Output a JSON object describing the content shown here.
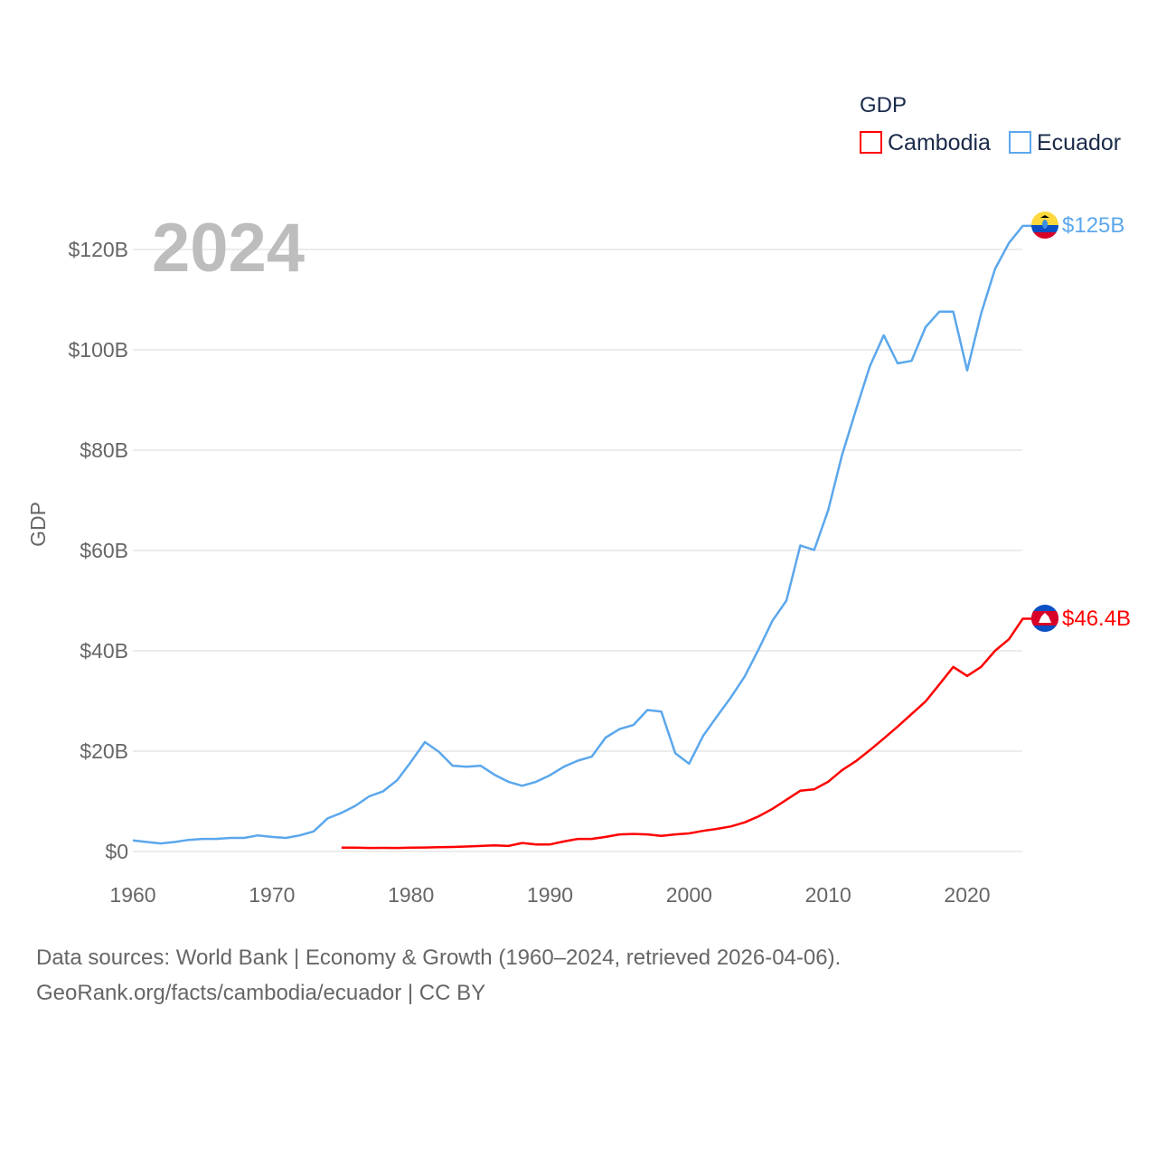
{
  "chart_data": {
    "type": "line",
    "year_label": "2024",
    "ylabel": "GDP",
    "legend_title": "GDP",
    "legend_placement": "top-right",
    "xlim": [
      1960,
      2024
    ],
    "ylim": [
      0,
      125
    ],
    "x_ticks": [
      1960,
      1970,
      1980,
      1990,
      2000,
      2010,
      2020
    ],
    "x_tick_labels": [
      "1960",
      "1970",
      "1980",
      "1990",
      "2000",
      "2010",
      "2020"
    ],
    "y_ticks": [
      0,
      20,
      40,
      60,
      80,
      100,
      120
    ],
    "y_tick_labels": [
      "$0",
      "$20B",
      "$40B",
      "$60B",
      "$80B",
      "$100B",
      "$120B"
    ],
    "grid": true,
    "series": [
      {
        "name": "Cambodia",
        "color": "#ff0000",
        "end_label": "$46.4B",
        "start_year": 1975,
        "values": [
          0.75,
          0.75,
          0.7,
          0.72,
          0.7,
          0.75,
          0.8,
          0.85,
          0.9,
          1.0,
          1.1,
          1.2,
          1.1,
          1.7,
          1.4,
          1.4,
          2.0,
          2.5,
          2.5,
          2.9,
          3.4,
          3.5,
          3.4,
          3.1,
          3.4,
          3.6,
          4.1,
          4.5,
          5.0,
          5.8,
          7.0,
          8.5,
          10.3,
          12.1,
          12.4,
          13.9,
          16.2,
          18.0,
          20.2,
          22.5,
          24.9,
          27.4,
          29.9,
          33.3,
          36.8,
          35.0,
          36.8,
          40.0,
          42.3,
          46.4
        ]
      },
      {
        "name": "Ecuador",
        "color": "#5ba7ec",
        "end_label": "$125B",
        "start_year": 1960,
        "values": [
          2.2,
          1.9,
          1.6,
          1.9,
          2.3,
          2.5,
          2.5,
          2.7,
          2.7,
          3.2,
          2.9,
          2.7,
          3.2,
          4.0,
          6.6,
          7.7,
          9.1,
          11.0,
          12.0,
          14.2,
          17.9,
          21.8,
          19.9,
          17.1,
          16.9,
          17.1,
          15.3,
          13.9,
          13.1,
          13.9,
          15.2,
          16.9,
          18.1,
          18.9,
          22.7,
          24.4,
          25.2,
          28.2,
          27.9,
          19.6,
          17.5,
          23.0,
          26.9,
          30.7,
          34.9,
          40.3,
          46.0,
          50.0,
          61.0,
          60.1,
          68.0,
          79.0,
          88.0,
          96.7,
          102.9,
          97.3,
          97.8,
          104.5,
          107.6,
          107.6,
          95.9,
          107.2,
          116.1,
          121.3,
          124.7
        ]
      }
    ]
  },
  "footer": {
    "line1": "Data sources: World Bank | Economy & Growth (1960–2024, retrieved 2026-04-06).",
    "line2": "GeoRank.org/facts/cambodia/ecuador | CC BY"
  }
}
